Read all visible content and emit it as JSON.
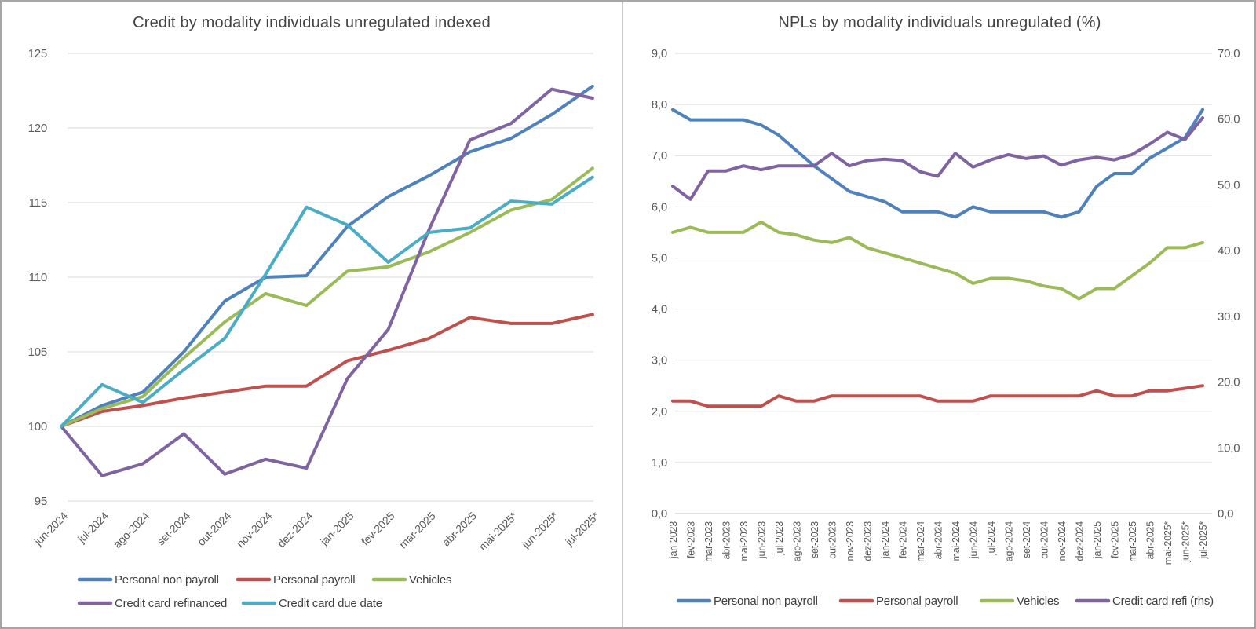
{
  "page": {
    "kind": "report-figure",
    "panels": [
      "left-chart-panel",
      "right-chart-panel"
    ]
  },
  "chart_data": [
    {
      "type": "line",
      "title": "Credit by modality individuals unregulated indexed",
      "xlabel": "",
      "ylabel": "",
      "ylim": [
        95,
        125
      ],
      "grid": true,
      "legend_position": "bottom-left",
      "y_axis": {
        "min": 95,
        "max": 125,
        "step": 5,
        "labels": [
          "125",
          "120",
          "115",
          "110",
          "105",
          "100",
          "95"
        ]
      },
      "categories": [
        "jun-2024",
        "jul-2024",
        "ago-2024",
        "set-2024",
        "out-2024",
        "nov-2024",
        "dez-2024",
        "jan-2025",
        "fev-2025",
        "mar-2025",
        "abr-2025",
        "mai-2025*",
        "jun-2025*",
        "jul-2025*"
      ],
      "series": [
        {
          "name": "Personal non payroll",
          "color": "#4F81BD",
          "axis": "left",
          "values": [
            100,
            101.4,
            102.3,
            105.0,
            108.4,
            110.0,
            110.1,
            113.4,
            115.4,
            116.8,
            118.4,
            119.3,
            120.9,
            122.8
          ]
        },
        {
          "name": "Personal payroll",
          "color": "#C0504D",
          "axis": "left",
          "values": [
            100,
            101.0,
            101.4,
            101.9,
            102.3,
            102.7,
            102.7,
            104.4,
            105.1,
            105.9,
            107.3,
            106.9,
            106.9,
            107.5
          ]
        },
        {
          "name": "Vehicles",
          "color": "#9BBB59",
          "axis": "left",
          "values": [
            100,
            101.2,
            102.0,
            104.6,
            107.0,
            108.9,
            108.1,
            110.4,
            110.7,
            111.7,
            113.0,
            114.5,
            115.2,
            117.3
          ]
        },
        {
          "name": "Credit card refinanced",
          "color": "#8064A2",
          "axis": "left",
          "values": [
            100,
            96.7,
            97.5,
            99.5,
            96.8,
            97.8,
            97.2,
            103.2,
            106.5,
            113.2,
            119.2,
            120.3,
            122.6,
            122.0
          ]
        },
        {
          "name": "Credit card due date",
          "color": "#4BACC6",
          "axis": "left",
          "values": [
            100,
            102.8,
            101.6,
            103.8,
            105.9,
            110.2,
            114.7,
            113.5,
            111.0,
            113.0,
            113.3,
            115.1,
            114.9,
            116.7
          ]
        }
      ],
      "legend_rows": [
        [
          0,
          1,
          2
        ],
        [
          3,
          4
        ]
      ]
    },
    {
      "type": "line",
      "title": "NPLs by modality individuals unregulated (%)",
      "xlabel": "",
      "ylabel": "",
      "ylim": [
        0,
        9
      ],
      "ylim_right": [
        0,
        70
      ],
      "grid": true,
      "legend_position": "bottom-center",
      "y_axis": {
        "min": 0,
        "max": 9,
        "step": 1,
        "labels": [
          "9,0",
          "8,0",
          "7,0",
          "6,0",
          "5,0",
          "4,0",
          "3,0",
          "2,0",
          "1,0",
          "0,0"
        ]
      },
      "y_axis_right": {
        "min": 0,
        "max": 70,
        "step": 10,
        "labels": [
          "70,0",
          "60,0",
          "50,0",
          "40,0",
          "30,0",
          "20,0",
          "10,0",
          "0,0"
        ]
      },
      "categories": [
        "jan-2023",
        "fev-2023",
        "mar-2023",
        "abr-2023",
        "mai-2023",
        "jun-2023",
        "jul-2023",
        "ago-2023",
        "set-2023",
        "out-2023",
        "nov-2023",
        "dez-2023",
        "jan-2024",
        "fev-2024",
        "mar-2024",
        "abr-2024",
        "mai-2024",
        "jun-2024",
        "jul-2024",
        "ago-2024",
        "set-2024",
        "out-2024",
        "nov-2024",
        "dez-2024",
        "jan-2025",
        "fev-2025",
        "mar-2025",
        "abr-2025",
        "mai-2025*",
        "jun-2025*",
        "jul-2025*"
      ],
      "series": [
        {
          "name": "Personal non payroll",
          "color": "#4F81BD",
          "axis": "left",
          "values": [
            7.9,
            7.7,
            7.7,
            7.7,
            7.7,
            7.6,
            7.4,
            7.1,
            6.8,
            6.55,
            6.3,
            6.2,
            6.1,
            5.9,
            5.9,
            5.9,
            5.8,
            6.0,
            5.9,
            5.9,
            5.9,
            5.9,
            5.8,
            5.9,
            6.4,
            6.65,
            6.65,
            6.95,
            7.15,
            7.35,
            7.9
          ]
        },
        {
          "name": "Personal payroll",
          "color": "#C0504D",
          "axis": "left",
          "values": [
            2.2,
            2.2,
            2.1,
            2.1,
            2.1,
            2.1,
            2.3,
            2.2,
            2.2,
            2.3,
            2.3,
            2.3,
            2.3,
            2.3,
            2.3,
            2.2,
            2.2,
            2.2,
            2.3,
            2.3,
            2.3,
            2.3,
            2.3,
            2.3,
            2.4,
            2.3,
            2.3,
            2.4,
            2.4,
            2.45,
            2.5
          ]
        },
        {
          "name": "Vehicles",
          "color": "#9BBB59",
          "axis": "left",
          "values": [
            5.5,
            5.6,
            5.5,
            5.5,
            5.5,
            5.7,
            5.5,
            5.45,
            5.35,
            5.3,
            5.4,
            5.2,
            5.1,
            5.0,
            4.9,
            4.8,
            4.7,
            4.5,
            4.6,
            4.6,
            4.55,
            4.45,
            4.4,
            4.2,
            4.4,
            4.4,
            4.65,
            4.9,
            5.2,
            5.2,
            5.3
          ]
        },
        {
          "name": "Credit card refi (rhs)",
          "color": "#8064A2",
          "axis": "right",
          "values": [
            49.8,
            47.8,
            52.1,
            52.1,
            52.9,
            52.3,
            52.9,
            52.9,
            52.9,
            54.8,
            52.9,
            53.7,
            53.9,
            53.7,
            52.0,
            51.3,
            54.8,
            52.7,
            53.8,
            54.6,
            54.0,
            54.4,
            53.0,
            53.8,
            54.2,
            53.8,
            54.6,
            56.2,
            58.0,
            56.9,
            60.2
          ]
        }
      ],
      "legend_rows": [
        [
          0,
          1,
          2,
          3
        ]
      ]
    }
  ]
}
